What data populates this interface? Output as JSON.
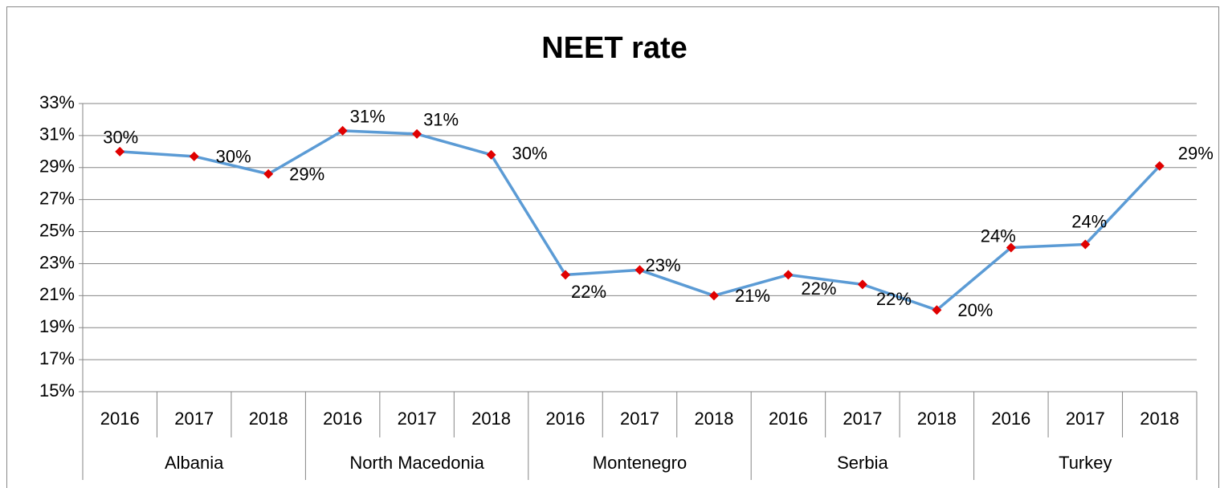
{
  "chart_data": {
    "type": "line",
    "title": "NEET rate",
    "categories": [
      "2016",
      "2017",
      "2018",
      "2016",
      "2017",
      "2018",
      "2016",
      "2017",
      "2018",
      "2016",
      "2017",
      "2018",
      "2016",
      "2017",
      "2018"
    ],
    "groups": [
      "Albania",
      "North Macedonia",
      "Montenegro",
      "Serbia",
      "Turkey"
    ],
    "series": [
      {
        "name": "NEET rate",
        "color": "#5b9bd5",
        "marker_color": "#e00000",
        "values": [
          30.0,
          29.7,
          28.6,
          31.3,
          31.1,
          29.8,
          22.3,
          22.6,
          21.0,
          22.3,
          21.7,
          20.1,
          24.0,
          24.2,
          29.1
        ],
        "value_labels": [
          "30%",
          "30%",
          "29%",
          "31%",
          "31%",
          "30%",
          "22%",
          "23%",
          "21%",
          "22%",
          "22%",
          "20%",
          "24%",
          "24%",
          "29%"
        ]
      }
    ],
    "ylim": [
      15,
      33
    ],
    "yticks": [
      {
        "value": 15,
        "label": "15%"
      },
      {
        "value": 17,
        "label": "17%"
      },
      {
        "value": 19,
        "label": "19%"
      },
      {
        "value": 21,
        "label": "21%"
      },
      {
        "value": 23,
        "label": "23%"
      },
      {
        "value": 25,
        "label": "25%"
      },
      {
        "value": 27,
        "label": "27%"
      },
      {
        "value": 29,
        "label": "29%"
      },
      {
        "value": 31,
        "label": "31%"
      },
      {
        "value": 33,
        "label": "33%"
      }
    ],
    "grid": true
  }
}
